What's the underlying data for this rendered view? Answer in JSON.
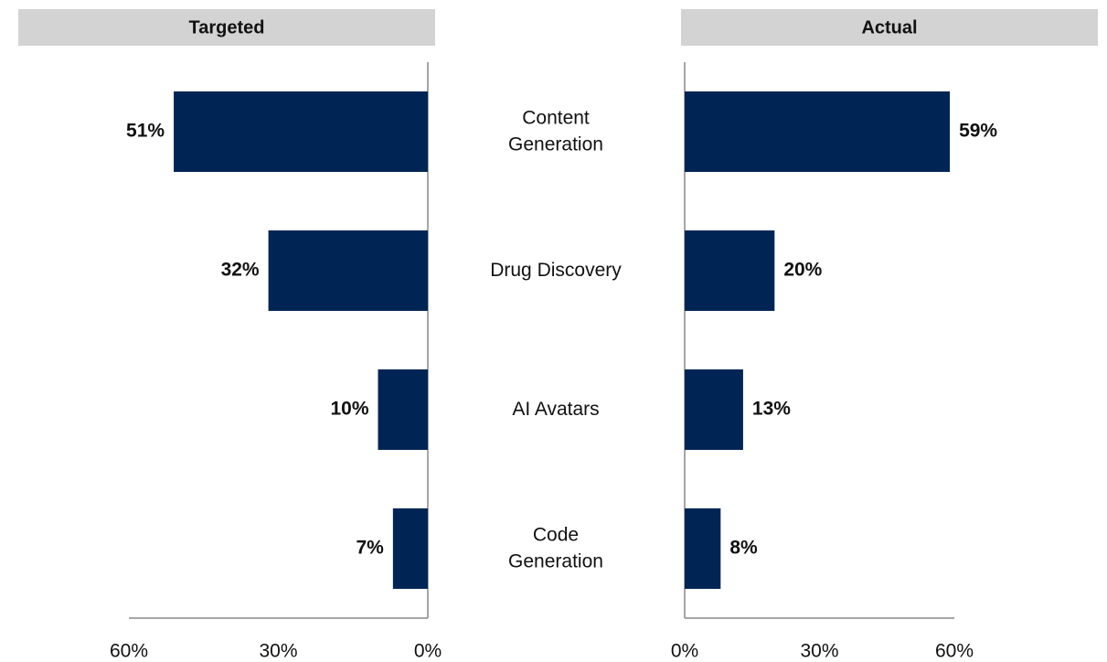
{
  "chart_data": [
    {
      "type": "bar",
      "orientation": "horizontal",
      "title": "Targeted",
      "categories": [
        "Content\nGeneration",
        "Drug Discovery",
        "AI Avatars",
        "Code\nGeneration"
      ],
      "values": [
        51,
        32,
        10,
        7
      ],
      "value_labels": [
        "51%",
        "32%",
        "10%",
        "7%"
      ],
      "color": "#002554",
      "xlim": [
        60,
        0
      ],
      "xticks": [
        {
          "value": 60,
          "label": "60%"
        },
        {
          "value": 30,
          "label": "30%"
        },
        {
          "value": 0,
          "label": "0%"
        }
      ]
    },
    {
      "type": "bar",
      "orientation": "horizontal",
      "title": "Actual",
      "values": [
        59,
        20,
        13,
        8
      ],
      "value_labels": [
        "59%",
        "20%",
        "13%",
        "8%"
      ],
      "color": "#002554",
      "xlim": [
        0,
        60
      ],
      "xticks": [
        {
          "value": 0,
          "label": "0%"
        },
        {
          "value": 30,
          "label": "30%"
        },
        {
          "value": 60,
          "label": "60%"
        }
      ]
    }
  ]
}
